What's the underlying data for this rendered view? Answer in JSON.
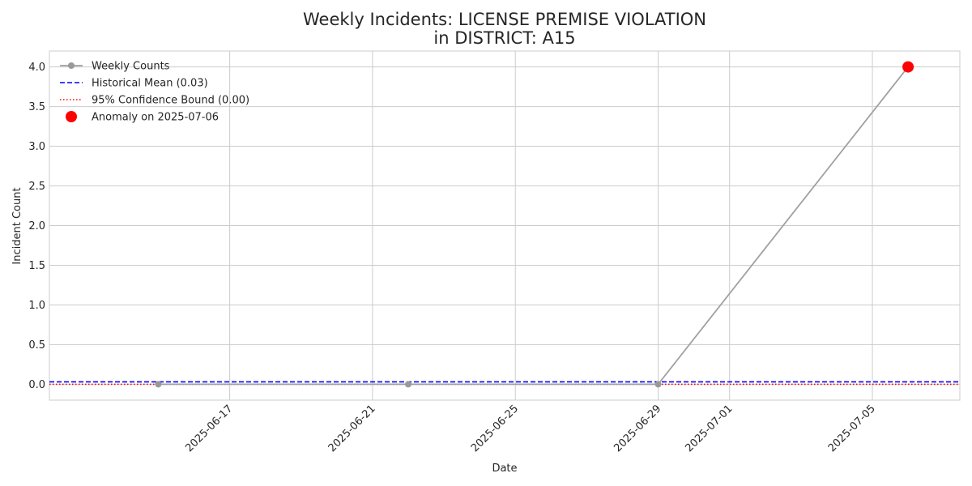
{
  "chart_data": {
    "type": "line",
    "title_line1": "Weekly Incidents: LICENSE PREMISE VIOLATION",
    "title_line2": "in DISTRICT: A15",
    "xlabel": "Date",
    "ylabel": "Incident Count",
    "x_tick_labels": [
      "2025-06-17",
      "2025-06-21",
      "2025-06-25",
      "2025-06-29",
      "2025-07-01",
      "2025-07-05"
    ],
    "x_ticks": [
      "2025-06-17",
      "2025-06-21",
      "2025-06-25",
      "2025-06-29",
      "2025-07-01",
      "2025-07-05"
    ],
    "y_ticks": [
      0.0,
      0.5,
      1.0,
      1.5,
      2.0,
      2.5,
      3.0,
      3.5,
      4.0
    ],
    "y_tick_labels": [
      "0.0",
      "0.5",
      "1.0",
      "1.5",
      "2.0",
      "2.5",
      "3.0",
      "3.5",
      "4.0"
    ],
    "xlim": [
      "2025-06-12",
      "2025-07-07"
    ],
    "ylim": [
      -0.2,
      4.2
    ],
    "grid": true,
    "legend_position": "top-left",
    "series": [
      {
        "name": "Weekly Counts",
        "x": [
          "2025-06-15",
          "2025-06-22",
          "2025-06-29",
          "2025-07-06"
        ],
        "y": [
          0,
          0,
          0,
          4
        ],
        "color": "#a0a0a0",
        "style": "solid-with-markers"
      }
    ],
    "reference_lines": [
      {
        "name": "Historical Mean (0.03)",
        "value": 0.03,
        "color": "#0000ff",
        "style": "dashed"
      },
      {
        "name": "95% Confidence Bound (0.00)",
        "value": 0.0,
        "color": "#ff0000",
        "style": "dotted"
      }
    ],
    "anomalies": [
      {
        "name": "Anomaly on 2025-07-06",
        "x": "2025-07-06",
        "y": 4,
        "color": "#ff0000"
      }
    ]
  }
}
